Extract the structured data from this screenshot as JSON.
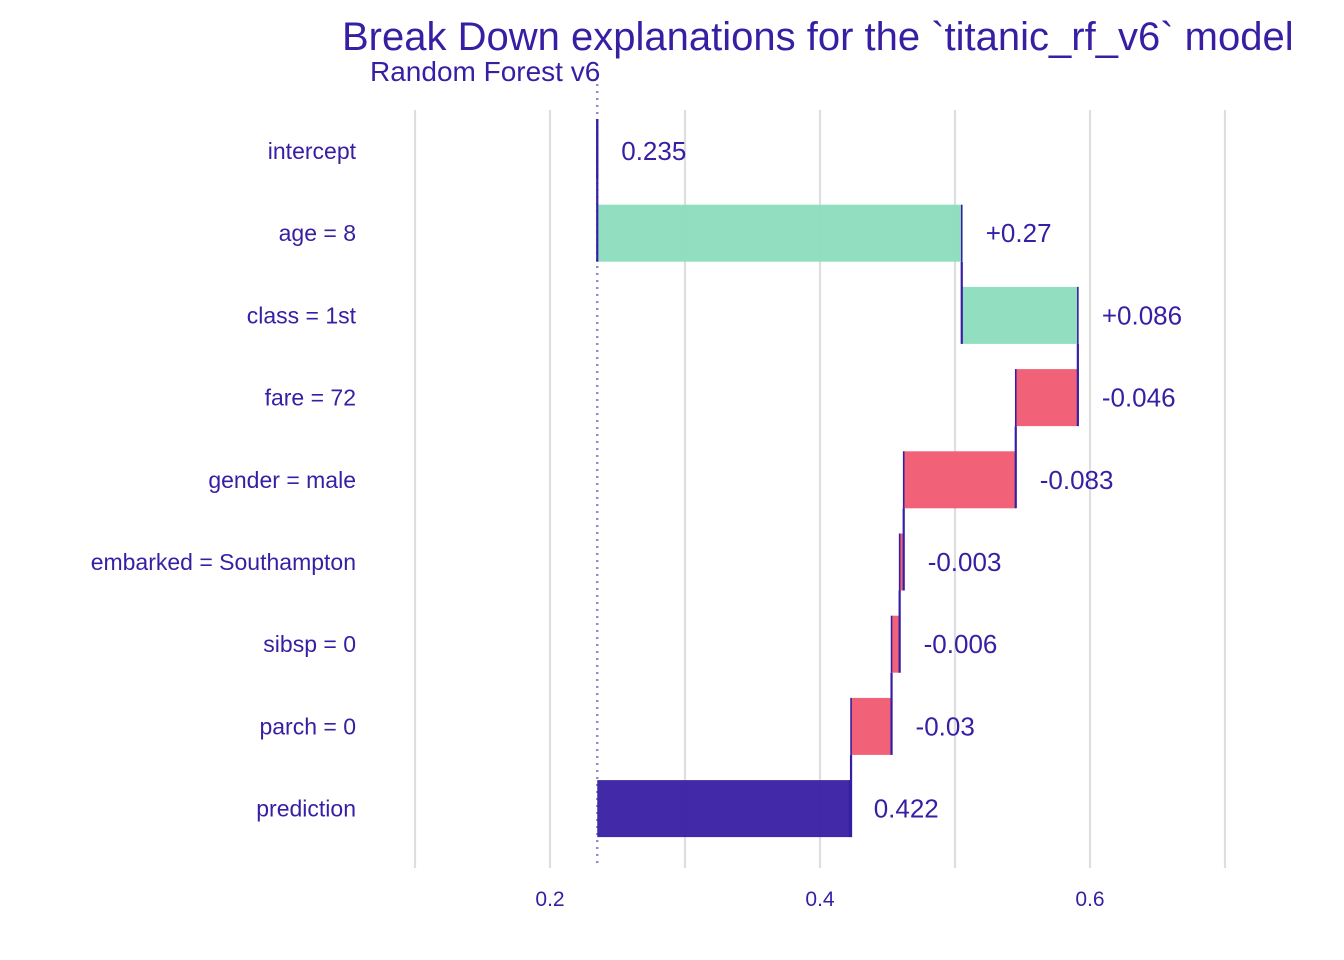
{
  "chart_data": {
    "type": "bar",
    "subtype": "break-down waterfall",
    "title": "Break Down explanations for the `titanic_rf_v6` model",
    "subtitle": "Random Forest v6",
    "xlabel": "",
    "ylabel": "",
    "xlim": [
      0.1,
      0.7
    ],
    "x_ticks": [
      0.2,
      0.4,
      0.6
    ],
    "x_tick_labels": [
      "0.2",
      "0.4",
      "0.6"
    ],
    "grid": true,
    "legend": "none",
    "baseline": 0.235,
    "categories": [
      "intercept",
      "age = 8",
      "class = 1st",
      "fare = 72",
      "gender = male",
      "embarked = Southampton",
      "sibsp = 0",
      "parch = 0",
      "prediction"
    ],
    "values": [
      0.235,
      0.27,
      0.086,
      -0.046,
      -0.083,
      -0.003,
      -0.006,
      -0.03,
      0.422
    ],
    "value_labels": [
      "0.235",
      "+0.27",
      "+0.086",
      "-0.046",
      "-0.083",
      "-0.003",
      "-0.006",
      "-0.03",
      "0.422"
    ],
    "colors": {
      "text": "#371ea3",
      "positive": "#8bdcbe",
      "negative": "#f05a71",
      "prediction": "#371ea3",
      "grid": "#dedede",
      "baseline_line": "#8b89c9",
      "connector": "#371ea3"
    }
  }
}
